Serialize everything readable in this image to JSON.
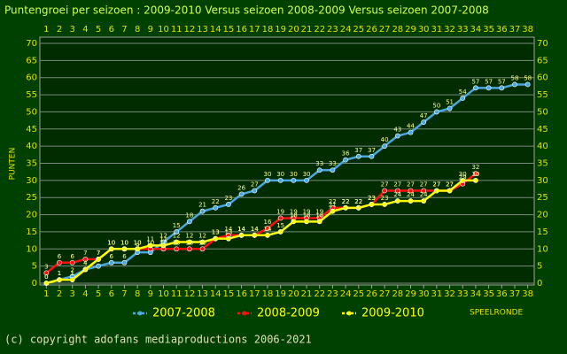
{
  "chart_data": {
    "type": "line",
    "title": "Puntengroei per seizoen : 2009-2010 Versus seizoen 2008-2009 Versus seizoen 2007-2008",
    "y_label": "PUNTEN",
    "x_label": "SPEELRONDE",
    "footer": "(c) copyright adofans mediaproductions 2006-2021",
    "x": [
      1,
      2,
      3,
      4,
      5,
      6,
      7,
      8,
      9,
      10,
      11,
      12,
      13,
      14,
      15,
      16,
      17,
      18,
      19,
      20,
      21,
      22,
      23,
      24,
      25,
      26,
      27,
      28,
      29,
      30,
      31,
      32,
      33,
      34,
      35,
      36,
      37,
      38
    ],
    "xlim": [
      0.5,
      38.5
    ],
    "xticks": [
      1,
      2,
      3,
      4,
      5,
      6,
      7,
      8,
      9,
      10,
      11,
      12,
      13,
      14,
      15,
      16,
      17,
      18,
      19,
      20,
      21,
      22,
      23,
      24,
      25,
      26,
      27,
      28,
      29,
      30,
      31,
      32,
      33,
      34,
      35,
      36,
      37,
      38
    ],
    "ylim": [
      0,
      70
    ],
    "yticks": [
      0,
      5,
      10,
      15,
      20,
      25,
      30,
      35,
      40,
      45,
      50,
      55,
      60,
      65,
      70
    ],
    "grid": true,
    "legend": "bottom",
    "series": [
      {
        "name": "2007-2008",
        "color": "#4aa8e0",
        "values": [
          0,
          1,
          2,
          4,
          5,
          6,
          6,
          9,
          9,
          12,
          15,
          18,
          21,
          22,
          23,
          26,
          27,
          30,
          30,
          30,
          30,
          33,
          33,
          36,
          37,
          37,
          40,
          43,
          44,
          47,
          50,
          51,
          54,
          57,
          57,
          57,
          58,
          58
        ]
      },
      {
        "name": "2008-2009",
        "color": "#ff1010",
        "values": [
          3,
          6,
          6,
          7,
          7,
          10,
          10,
          10,
          10,
          10,
          10,
          10,
          10,
          13,
          14,
          14,
          14,
          16,
          19,
          19,
          19,
          19,
          22,
          22,
          22,
          23,
          27,
          27,
          27,
          27,
          27,
          27,
          29,
          32,
          null,
          null,
          null,
          null
        ]
      },
      {
        "name": "2009-2010",
        "color": "#ffff00",
        "values": [
          0,
          1,
          1,
          4,
          7,
          10,
          10,
          10,
          11,
          11,
          12,
          12,
          12,
          13,
          13,
          14,
          14,
          14,
          15,
          18,
          18,
          18,
          21,
          22,
          22,
          23,
          23,
          24,
          24,
          24,
          27,
          27,
          30,
          30,
          null,
          null,
          null,
          null
        ]
      }
    ]
  }
}
